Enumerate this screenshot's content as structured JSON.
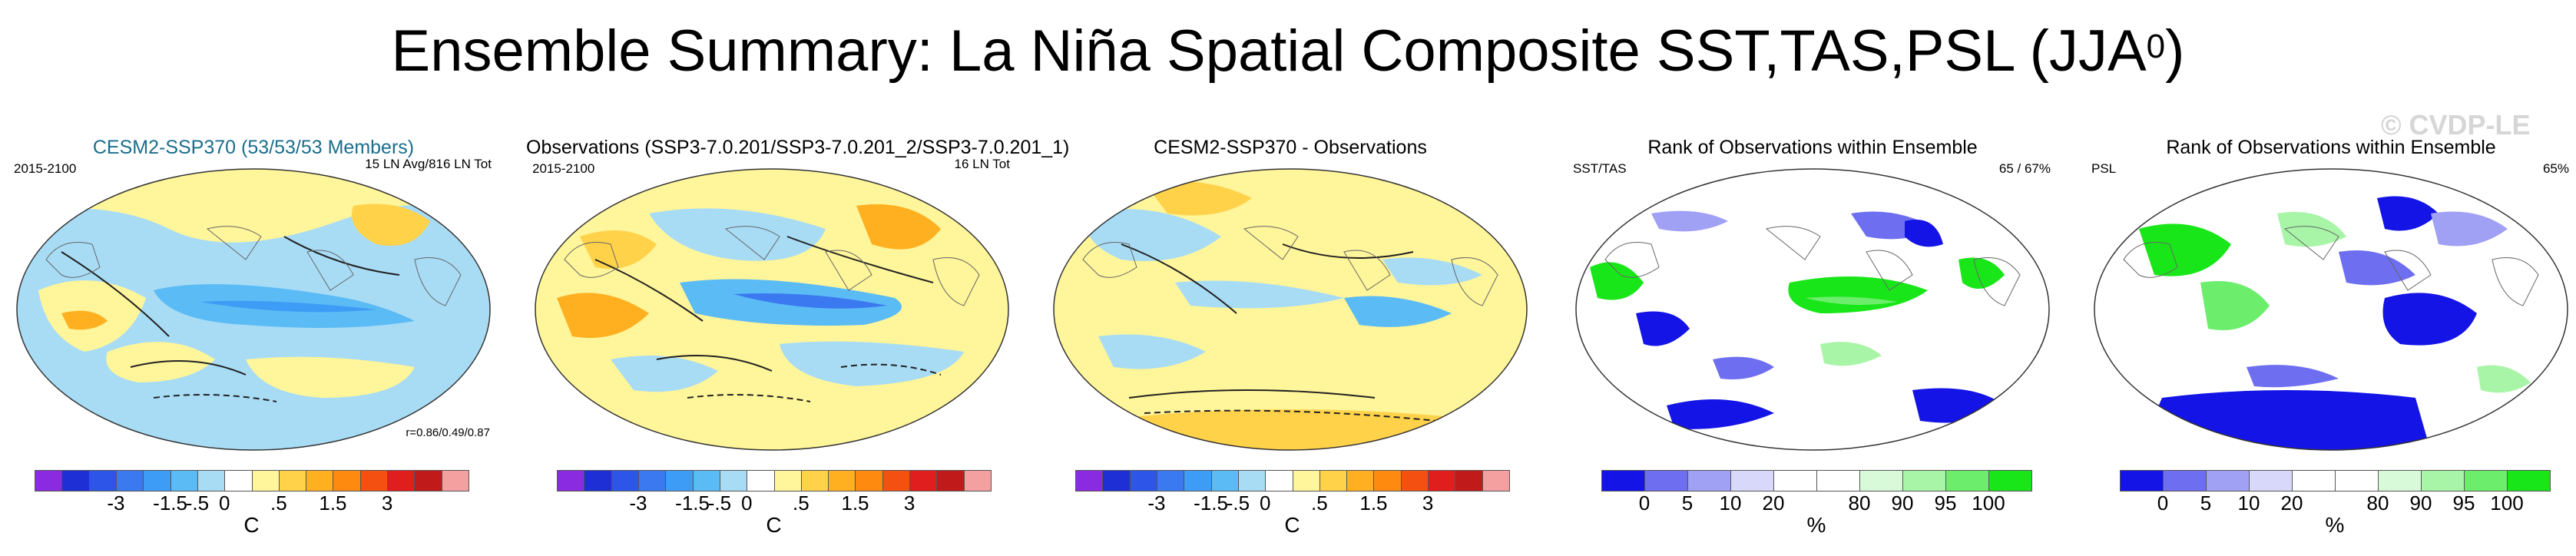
{
  "title": "Ensemble Summary: La Niña Spatial Composite SST,TAS,PSL (JJA",
  "title_superscript": "0",
  "title_close": ")",
  "watermark": "© CVDP-LE",
  "panels": [
    {
      "title": "CESM2-SSP370 (53/53/53 Members)",
      "left_label": "2015-2100",
      "right_label": "15 LN Avg/816 LN Tot",
      "stat": "r=0.86/0.49/0.87"
    },
    {
      "title": "Observations (SSP3-7.0.201/SSP3-7.0.201_2/SSP3-7.0.201_1)",
      "left_label": "2015-2100",
      "right_label": "16 LN Tot"
    },
    {
      "title": "CESM2-SSP370 - Observations"
    },
    {
      "title": "Rank of Observations within Ensemble",
      "left_label": "SST/TAS",
      "right_label": "65 /  67%"
    },
    {
      "title": "Rank of Observations within Ensemble",
      "left_label": "PSL",
      "right_label": "65%"
    }
  ],
  "chart_data": [
    {
      "type": "heatmap",
      "title": "CESM2-SSP370 (53/53/53 Members)",
      "subtitle": "2015-2100",
      "fields": [
        "SST",
        "TAS",
        "PSL"
      ],
      "pattern_correlation": [
        0.86,
        0.49,
        0.87
      ],
      "colorbar_ticks": [
        "-3",
        "-1.5",
        "-.5",
        "0",
        ".5",
        "1.5",
        "3"
      ],
      "colorbar_unit": "C"
    },
    {
      "type": "heatmap",
      "title": "Observations (SSP3-7.0.201/SSP3-7.0.201_2/SSP3-7.0.201_1)",
      "subtitle": "2015-2100",
      "colorbar_ticks": [
        "-3",
        "-1.5",
        "-.5",
        "0",
        ".5",
        "1.5",
        "3"
      ],
      "colorbar_unit": "C"
    },
    {
      "type": "heatmap",
      "title": "CESM2-SSP370 - Observations",
      "colorbar_ticks": [
        "-3",
        "-1.5",
        "-.5",
        "0",
        ".5",
        "1.5",
        "3"
      ],
      "colorbar_unit": "C"
    },
    {
      "type": "heatmap",
      "title": "Rank of Observations within Ensemble",
      "field": "SST/TAS",
      "percent_in_range": [
        65,
        67
      ],
      "colorbar_ticks": [
        "0",
        "5",
        "10",
        "20",
        "80",
        "90",
        "95",
        "100"
      ],
      "colorbar_unit": "%"
    },
    {
      "type": "heatmap",
      "title": "Rank of Observations within Ensemble",
      "field": "PSL",
      "percent_in_range": [
        65
      ],
      "colorbar_ticks": [
        "0",
        "5",
        "10",
        "20",
        "80",
        "90",
        "95",
        "100"
      ],
      "colorbar_unit": "%"
    }
  ],
  "colorbars": {
    "temperature": {
      "colors": [
        "#8a2be2",
        "#1e2fd6",
        "#2d56e8",
        "#3b79f0",
        "#3d9cf5",
        "#5bbbf5",
        "#a8dcf5",
        "#ffffff",
        "#fff59a",
        "#ffd24a",
        "#ffb020",
        "#ff8a10",
        "#f45012",
        "#e01e1e",
        "#c01a1a",
        "#f5a0a0"
      ],
      "tick_labels": [
        "-3",
        "-1.5",
        "-.5",
        "0",
        ".5",
        "1.5",
        "3"
      ],
      "unit": "C"
    },
    "rank": {
      "colors": [
        "#1414e6",
        "#6e6ef0",
        "#a0a0f5",
        "#d8d8fa",
        "#ffffff",
        "#ffffff",
        "#d9fad9",
        "#a8f5a8",
        "#6cee6c",
        "#19e619"
      ],
      "tick_labels": [
        "0",
        "5",
        "10",
        "20",
        "80",
        "90",
        "95",
        "100"
      ],
      "unit": "%"
    }
  }
}
